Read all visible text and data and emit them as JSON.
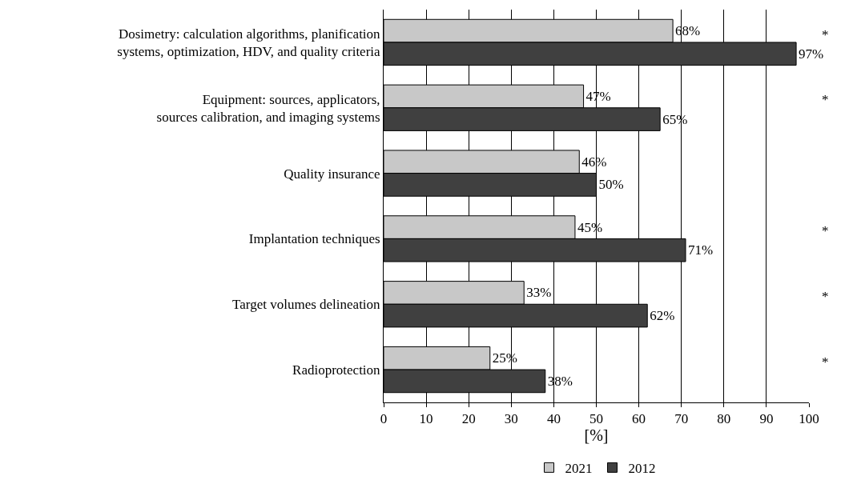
{
  "chart_data": {
    "type": "bar",
    "orientation": "horizontal",
    "xlabel": "[%]",
    "categories": [
      "Dosimetry: calculation algorithms, planification\nsystems, optimization, HDV, and quality criteria",
      "Equipment: sources, applicators,\nsources calibration, and imaging systems",
      "Quality insurance",
      "Implantation techniques",
      "Target volumes delineation",
      "Radioprotection"
    ],
    "series": [
      {
        "name": "2021",
        "color": "#c8c8c8",
        "values": [
          68,
          47,
          46,
          45,
          33,
          25
        ],
        "value_labels": [
          "68%",
          "47%",
          "46%",
          "45%",
          "33%",
          "25%"
        ]
      },
      {
        "name": "2012",
        "color": "#404040",
        "values": [
          97,
          65,
          50,
          71,
          62,
          38
        ],
        "value_labels": [
          "97%",
          "65%",
          "50%",
          "71%",
          "62%",
          "38%"
        ]
      }
    ],
    "xlim": [
      0,
      100
    ],
    "xticks": [
      0,
      10,
      20,
      30,
      40,
      50,
      60,
      70,
      80,
      90,
      100
    ],
    "grid": "x",
    "legend": "bottom",
    "annotations": [
      "*",
      "*",
      "*",
      "*",
      "*"
    ]
  }
}
